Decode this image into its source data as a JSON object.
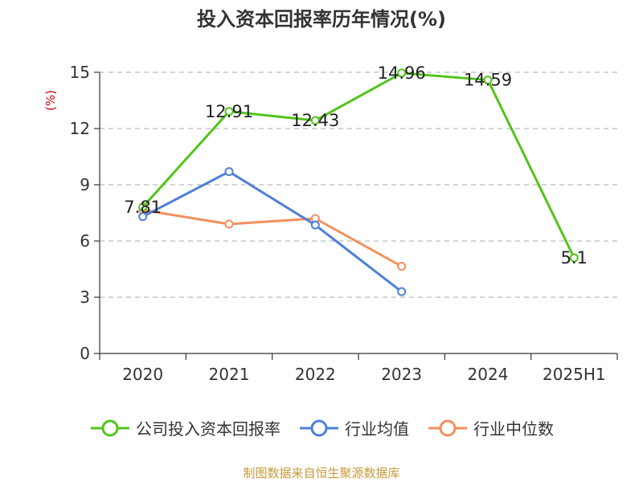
{
  "chart_data": {
    "type": "line",
    "title": "投入资本回报率历年情况(%)",
    "ylabel": "(%)",
    "xlabel": "",
    "categories": [
      "2020",
      "2021",
      "2022",
      "2023",
      "2024",
      "2025H1"
    ],
    "yticks": [
      0,
      3,
      6,
      9,
      12,
      15
    ],
    "ylim": [
      0,
      15
    ],
    "grid": true,
    "legend_position": "bottom",
    "series": [
      {
        "name": "公司投入资本回报率",
        "color": "#52c41a",
        "values": [
          7.81,
          12.91,
          12.43,
          14.96,
          14.59,
          5.1
        ],
        "labels": [
          "7.81",
          "12.91",
          "12.43",
          "14.96",
          "14.59",
          "5.1"
        ]
      },
      {
        "name": "行业均值",
        "color": "#4e7fd9",
        "values": [
          7.3,
          9.7,
          6.85,
          3.3,
          null,
          null
        ]
      },
      {
        "name": "行业中位数",
        "color": "#f28f5c",
        "values": [
          7.65,
          6.9,
          7.2,
          4.65,
          null,
          null
        ]
      }
    ]
  },
  "source_note": "制图数据来自恒生聚源数据库",
  "colors": {
    "axis": "#333333",
    "grid": "#bbbbbb",
    "ylabel": "#cc0000",
    "source": "#c79a3a"
  }
}
